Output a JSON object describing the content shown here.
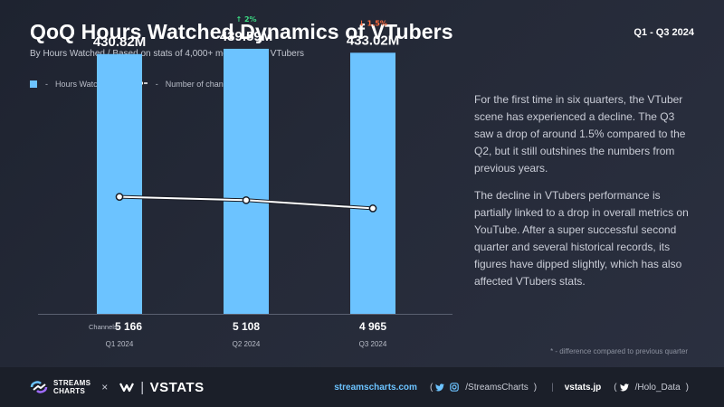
{
  "header": {
    "title": "QoQ Hours Watched Dynamics of VTubers",
    "subtitle": "By Hours Watched / Based on stats of 4,000+ most popular VTubers",
    "period": "Q1 - Q3 2024"
  },
  "legend": {
    "dash": "-",
    "bars_label": "Hours Watched",
    "line_label": "Number of channels"
  },
  "colors": {
    "bar": "#6cc3ff",
    "line": "#ffffff",
    "up": "#3ddc84",
    "down": "#ff6b3d"
  },
  "chart_data": {
    "type": "bar",
    "categories": [
      "Q1 2024",
      "Q2 2024",
      "Q3 2024"
    ],
    "series": [
      {
        "name": "Hours Watched",
        "type": "bar",
        "values": [
          430.82,
          439.59,
          433.02
        ],
        "value_labels": [
          "430.82M",
          "439.59M",
          "433.02M"
        ],
        "changes": [
          null,
          "2%",
          "1.5%"
        ],
        "change_direction": [
          null,
          "up",
          "down"
        ]
      },
      {
        "name": "Number of channels",
        "type": "line",
        "values": [
          5166,
          5108,
          4965
        ],
        "value_labels": [
          "5 166",
          "5 108",
          "4 965"
        ]
      }
    ],
    "channels_label": "Channels:",
    "ylim": [
      0,
      450
    ],
    "grid": false
  },
  "description": {
    "p1": "For the first time in six quarters, the VTuber scene has experienced a decline. The Q3 saw a drop of around 1.5% compared to the Q2, but it still outshines the numbers from previous years.",
    "p2": "The decline in VTubers performance is partially linked to a drop in overall metrics on YouTube. After a super successful second quarter and several historical records, its figures have dipped slightly, which has also affected VTubers stats."
  },
  "footnote": "* - difference compared to previous quarter",
  "footer": {
    "brand_line1": "STREAMS",
    "brand_line2": "CHARTS",
    "times": "×",
    "vstats": "VSTATS",
    "vstats_sep": "|",
    "site1": "streamscharts.com",
    "handle1": "/StreamsCharts",
    "site2": "vstats.jp",
    "handle2": "/Holo_Data",
    "open_paren": "(",
    "close_paren": ")",
    "divider": "|"
  }
}
